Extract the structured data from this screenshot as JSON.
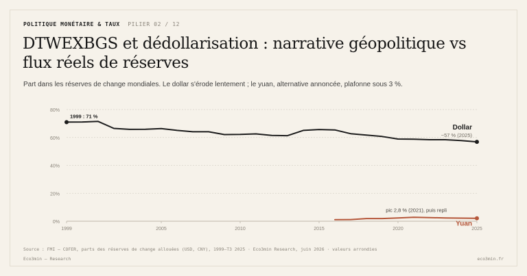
{
  "header": {
    "kicker": "POLITIQUE MONÉTAIRE & TAUX",
    "pillar": "PILIER 02 / 12"
  },
  "title": "DTWEXBGS et dédollarisation : narrative géopolitique vs flux réels de réserves",
  "subtitle": "Part dans les réserves de change mondiales. Le dollar s'érode lentement ; le yuan, alternative annoncée, plafonne sous 3 %.",
  "footer": {
    "source": "Source : FMI — COFER, parts des réserves de change allouées (USD, CNY), 1999–T3 2025 · Eco3min Research, juin 2026 · valeurs arrondies",
    "brand_left": "Eco3min — Research",
    "brand_right": "eco3min.fr"
  },
  "colors": {
    "background": "#f6f2ea",
    "dollar": "#1c1c1c",
    "yuan": "#b5573a",
    "grid": "#d9d4ca",
    "muted": "#8a847a"
  },
  "chart_data": {
    "type": "line",
    "xlim": [
      1999,
      2025
    ],
    "ylim": [
      0,
      80
    ],
    "x_ticks": [
      1999,
      2005,
      2010,
      2015,
      2020,
      2025
    ],
    "y_ticks": [
      {
        "value": 0,
        "label": "0%"
      },
      {
        "value": 20,
        "label": "20%"
      },
      {
        "value": 40,
        "label": "40%"
      },
      {
        "value": 60,
        "label": "60%"
      },
      {
        "value": 80,
        "label": "80%"
      }
    ],
    "grid": true,
    "series": [
      {
        "name": "Dollar",
        "color": "#1c1c1c",
        "x": [
          1999,
          2000,
          2001,
          2002,
          2003,
          2004,
          2005,
          2006,
          2007,
          2008,
          2009,
          2010,
          2011,
          2012,
          2013,
          2014,
          2015,
          2016,
          2017,
          2018,
          2019,
          2020,
          2021,
          2022,
          2023,
          2024,
          2025
        ],
        "y": [
          71.0,
          71.1,
          71.5,
          66.5,
          65.8,
          65.9,
          66.4,
          65.1,
          64.1,
          64.1,
          62.1,
          62.2,
          62.6,
          61.5,
          61.3,
          65.1,
          65.7,
          65.4,
          62.7,
          61.7,
          60.7,
          58.9,
          58.8,
          58.4,
          58.4,
          57.8,
          56.9
        ]
      },
      {
        "name": "Yuan",
        "color": "#b5573a",
        "x": [
          2016,
          2017,
          2018,
          2019,
          2020,
          2021,
          2022,
          2023,
          2024,
          2025
        ],
        "y": [
          1.1,
          1.2,
          1.9,
          1.9,
          2.3,
          2.8,
          2.6,
          2.3,
          2.2,
          2.1
        ]
      }
    ],
    "annotations": {
      "dollar_start": "1999 : 71 %",
      "dollar_series_label": "Dollar",
      "dollar_end": "~57 % (2025)",
      "yuan_peak": "pic 2,8 % (2021), puis repli",
      "yuan_series_label": "Yuan"
    }
  }
}
